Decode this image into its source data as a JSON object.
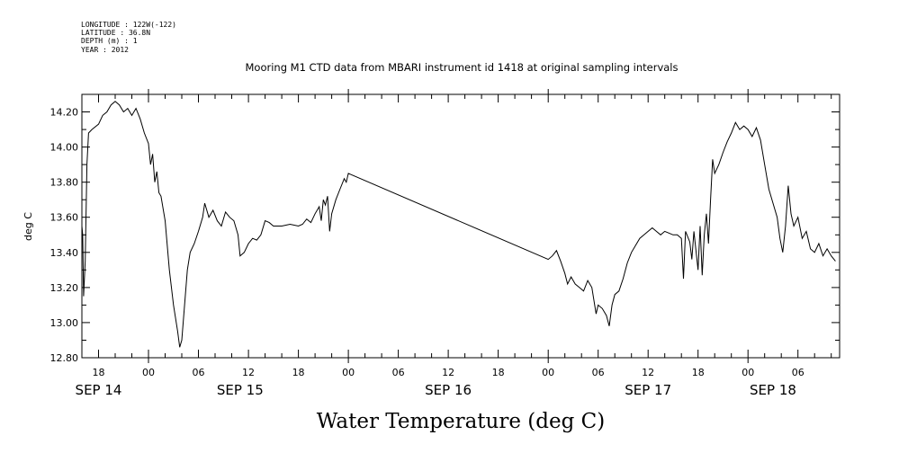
{
  "header": {
    "longitude": "LONGITUDE : 122W(-122)",
    "latitude": "LATITUDE : 36.8N",
    "depth": "DEPTH (m) : 1",
    "year": "YEAR : 2012"
  },
  "chart_data": {
    "type": "line",
    "title": "Mooring M1 CTD data from MBARI instrument id 1418 at original sampling intervals",
    "xlabel": "Water Temperature (deg C)",
    "ylabel": "deg C",
    "ylim": [
      12.8,
      14.3
    ],
    "xlim": [
      "2012-09-14T16:00",
      "2012-09-18T11:00"
    ],
    "y_ticks": [
      "12.80",
      "13.00",
      "13.20",
      "13.40",
      "13.60",
      "13.80",
      "14.00",
      "14.20"
    ],
    "x_hour_ticks": [
      {
        "t": "2012-09-14T18:00",
        "label": "18"
      },
      {
        "t": "2012-09-15T00:00",
        "label": "00"
      },
      {
        "t": "2012-09-15T06:00",
        "label": "06"
      },
      {
        "t": "2012-09-15T12:00",
        "label": "12"
      },
      {
        "t": "2012-09-15T18:00",
        "label": "18"
      },
      {
        "t": "2012-09-16T00:00",
        "label": "00"
      },
      {
        "t": "2012-09-16T06:00",
        "label": "06"
      },
      {
        "t": "2012-09-16T12:00",
        "label": "12"
      },
      {
        "t": "2012-09-16T18:00",
        "label": "18"
      },
      {
        "t": "2012-09-17T00:00",
        "label": "00"
      },
      {
        "t": "2012-09-17T06:00",
        "label": "06"
      },
      {
        "t": "2012-09-17T12:00",
        "label": "12"
      },
      {
        "t": "2012-09-17T18:00",
        "label": "18"
      },
      {
        "t": "2012-09-18T00:00",
        "label": "00"
      },
      {
        "t": "2012-09-18T06:00",
        "label": "06"
      }
    ],
    "x_day_labels": [
      {
        "t": "2012-09-14T18:00",
        "label": "SEP 14"
      },
      {
        "t": "2012-09-15T11:00",
        "label": "SEP 15"
      },
      {
        "t": "2012-09-16T12:00",
        "label": "SEP 16"
      },
      {
        "t": "2012-09-17T12:00",
        "label": "SEP 17"
      },
      {
        "t": "2012-09-18T03:00",
        "label": "SEP 18"
      }
    ],
    "series": [
      {
        "points": [
          [
            "2012-09-14T16:00",
            13.55
          ],
          [
            "2012-09-14T16:06",
            13.5
          ],
          [
            "2012-09-14T16:12",
            13.15
          ],
          [
            "2012-09-14T16:24",
            13.35
          ],
          [
            "2012-09-14T16:36",
            13.9
          ],
          [
            "2012-09-14T16:48",
            14.08
          ],
          [
            "2012-09-14T17:12",
            14.1
          ],
          [
            "2012-09-14T18:00",
            14.13
          ],
          [
            "2012-09-14T18:30",
            14.18
          ],
          [
            "2012-09-14T19:00",
            14.2
          ],
          [
            "2012-09-14T19:30",
            14.24
          ],
          [
            "2012-09-14T20:00",
            14.26
          ],
          [
            "2012-09-14T20:30",
            14.24
          ],
          [
            "2012-09-14T21:00",
            14.2
          ],
          [
            "2012-09-14T21:30",
            14.22
          ],
          [
            "2012-09-14T22:00",
            14.18
          ],
          [
            "2012-09-14T22:30",
            14.22
          ],
          [
            "2012-09-14T23:00",
            14.16
          ],
          [
            "2012-09-14T23:30",
            14.08
          ],
          [
            "2012-09-15T00:00",
            14.02
          ],
          [
            "2012-09-15T00:15",
            13.9
          ],
          [
            "2012-09-15T00:30",
            13.96
          ],
          [
            "2012-09-15T00:45",
            13.8
          ],
          [
            "2012-09-15T01:00",
            13.86
          ],
          [
            "2012-09-15T01:15",
            13.74
          ],
          [
            "2012-09-15T01:30",
            13.72
          ],
          [
            "2012-09-15T02:00",
            13.58
          ],
          [
            "2012-09-15T02:30",
            13.3
          ],
          [
            "2012-09-15T03:00",
            13.1
          ],
          [
            "2012-09-15T03:30",
            12.95
          ],
          [
            "2012-09-15T03:45",
            12.86
          ],
          [
            "2012-09-15T04:00",
            12.9
          ],
          [
            "2012-09-15T04:20",
            13.1
          ],
          [
            "2012-09-15T04:40",
            13.3
          ],
          [
            "2012-09-15T05:00",
            13.4
          ],
          [
            "2012-09-15T05:30",
            13.45
          ],
          [
            "2012-09-15T06:00",
            13.52
          ],
          [
            "2012-09-15T06:30",
            13.6
          ],
          [
            "2012-09-15T06:45",
            13.68
          ],
          [
            "2012-09-15T07:15",
            13.6
          ],
          [
            "2012-09-15T07:45",
            13.64
          ],
          [
            "2012-09-15T08:15",
            13.58
          ],
          [
            "2012-09-15T08:45",
            13.55
          ],
          [
            "2012-09-15T09:15",
            13.63
          ],
          [
            "2012-09-15T09:45",
            13.6
          ],
          [
            "2012-09-15T10:15",
            13.58
          ],
          [
            "2012-09-15T10:45",
            13.5
          ],
          [
            "2012-09-15T11:00",
            13.38
          ],
          [
            "2012-09-15T11:30",
            13.4
          ],
          [
            "2012-09-15T12:00",
            13.45
          ],
          [
            "2012-09-15T12:30",
            13.48
          ],
          [
            "2012-09-15T13:00",
            13.47
          ],
          [
            "2012-09-15T13:30",
            13.5
          ],
          [
            "2012-09-15T14:00",
            13.58
          ],
          [
            "2012-09-15T14:30",
            13.57
          ],
          [
            "2012-09-15T15:00",
            13.55
          ],
          [
            "2012-09-15T16:00",
            13.55
          ],
          [
            "2012-09-15T17:00",
            13.56
          ],
          [
            "2012-09-15T18:00",
            13.55
          ],
          [
            "2012-09-15T18:30",
            13.56
          ],
          [
            "2012-09-15T19:00",
            13.59
          ],
          [
            "2012-09-15T19:30",
            13.57
          ],
          [
            "2012-09-15T20:00",
            13.62
          ],
          [
            "2012-09-15T20:30",
            13.66
          ],
          [
            "2012-09-15T20:45",
            13.58
          ],
          [
            "2012-09-15T21:00",
            13.7
          ],
          [
            "2012-09-15T21:15",
            13.67
          ],
          [
            "2012-09-15T21:30",
            13.72
          ],
          [
            "2012-09-15T21:45",
            13.52
          ],
          [
            "2012-09-15T22:00",
            13.62
          ],
          [
            "2012-09-15T22:30",
            13.7
          ],
          [
            "2012-09-15T23:00",
            13.76
          ],
          [
            "2012-09-15T23:30",
            13.82
          ],
          [
            "2012-09-15T23:45",
            13.8
          ],
          [
            "2012-09-16T00:00",
            13.85
          ],
          [
            "2012-09-17T00:00",
            13.36
          ],
          [
            "2012-09-17T00:30",
            13.38
          ],
          [
            "2012-09-17T01:00",
            13.41
          ],
          [
            "2012-09-17T01:30",
            13.35
          ],
          [
            "2012-09-17T02:00",
            13.28
          ],
          [
            "2012-09-17T02:20",
            13.22
          ],
          [
            "2012-09-17T02:45",
            13.26
          ],
          [
            "2012-09-17T03:15",
            13.22
          ],
          [
            "2012-09-17T03:45",
            13.2
          ],
          [
            "2012-09-17T04:15",
            13.18
          ],
          [
            "2012-09-17T04:45",
            13.24
          ],
          [
            "2012-09-17T05:15",
            13.2
          ],
          [
            "2012-09-17T05:45",
            13.05
          ],
          [
            "2012-09-17T06:00",
            13.1
          ],
          [
            "2012-09-17T06:30",
            13.08
          ],
          [
            "2012-09-17T07:00",
            13.04
          ],
          [
            "2012-09-17T07:20",
            12.98
          ],
          [
            "2012-09-17T07:40",
            13.1
          ],
          [
            "2012-09-17T08:00",
            13.16
          ],
          [
            "2012-09-17T08:30",
            13.18
          ],
          [
            "2012-09-17T09:00",
            13.25
          ],
          [
            "2012-09-17T09:30",
            13.34
          ],
          [
            "2012-09-17T10:00",
            13.4
          ],
          [
            "2012-09-17T10:30",
            13.44
          ],
          [
            "2012-09-17T11:00",
            13.48
          ],
          [
            "2012-09-17T11:30",
            13.5
          ],
          [
            "2012-09-17T12:00",
            13.52
          ],
          [
            "2012-09-17T12:30",
            13.54
          ],
          [
            "2012-09-17T13:00",
            13.52
          ],
          [
            "2012-09-17T13:30",
            13.5
          ],
          [
            "2012-09-17T14:00",
            13.52
          ],
          [
            "2012-09-17T14:30",
            13.51
          ],
          [
            "2012-09-17T15:00",
            13.5
          ],
          [
            "2012-09-17T15:30",
            13.5
          ],
          [
            "2012-09-17T16:00",
            13.48
          ],
          [
            "2012-09-17T16:15",
            13.25
          ],
          [
            "2012-09-17T16:30",
            13.52
          ],
          [
            "2012-09-17T17:00",
            13.46
          ],
          [
            "2012-09-17T17:15",
            13.36
          ],
          [
            "2012-09-17T17:30",
            13.52
          ],
          [
            "2012-09-17T18:00",
            13.3
          ],
          [
            "2012-09-17T18:15",
            13.55
          ],
          [
            "2012-09-17T18:30",
            13.27
          ],
          [
            "2012-09-17T18:45",
            13.5
          ],
          [
            "2012-09-17T19:00",
            13.62
          ],
          [
            "2012-09-17T19:15",
            13.45
          ],
          [
            "2012-09-17T19:30",
            13.7
          ],
          [
            "2012-09-17T19:45",
            13.93
          ],
          [
            "2012-09-17T20:00",
            13.85
          ],
          [
            "2012-09-17T20:30",
            13.9
          ],
          [
            "2012-09-17T21:00",
            13.97
          ],
          [
            "2012-09-17T21:30",
            14.03
          ],
          [
            "2012-09-17T22:00",
            14.08
          ],
          [
            "2012-09-17T22:30",
            14.14
          ],
          [
            "2012-09-17T23:00",
            14.1
          ],
          [
            "2012-09-17T23:30",
            14.12
          ],
          [
            "2012-09-18T00:00",
            14.1
          ],
          [
            "2012-09-18T00:30",
            14.06
          ],
          [
            "2012-09-18T01:00",
            14.11
          ],
          [
            "2012-09-18T01:30",
            14.04
          ],
          [
            "2012-09-18T02:00",
            13.9
          ],
          [
            "2012-09-18T02:30",
            13.76
          ],
          [
            "2012-09-18T03:00",
            13.68
          ],
          [
            "2012-09-18T03:30",
            13.6
          ],
          [
            "2012-09-18T03:50",
            13.48
          ],
          [
            "2012-09-18T04:10",
            13.4
          ],
          [
            "2012-09-18T04:30",
            13.55
          ],
          [
            "2012-09-18T04:50",
            13.78
          ],
          [
            "2012-09-18T05:10",
            13.62
          ],
          [
            "2012-09-18T05:30",
            13.55
          ],
          [
            "2012-09-18T06:00",
            13.6
          ],
          [
            "2012-09-18T06:30",
            13.48
          ],
          [
            "2012-09-18T07:00",
            13.52
          ],
          [
            "2012-09-18T07:30",
            13.42
          ],
          [
            "2012-09-18T08:00",
            13.4
          ],
          [
            "2012-09-18T08:30",
            13.45
          ],
          [
            "2012-09-18T09:00",
            13.38
          ],
          [
            "2012-09-18T09:30",
            13.42
          ],
          [
            "2012-09-18T10:00",
            13.38
          ],
          [
            "2012-09-18T10:30",
            13.35
          ]
        ]
      }
    ]
  }
}
